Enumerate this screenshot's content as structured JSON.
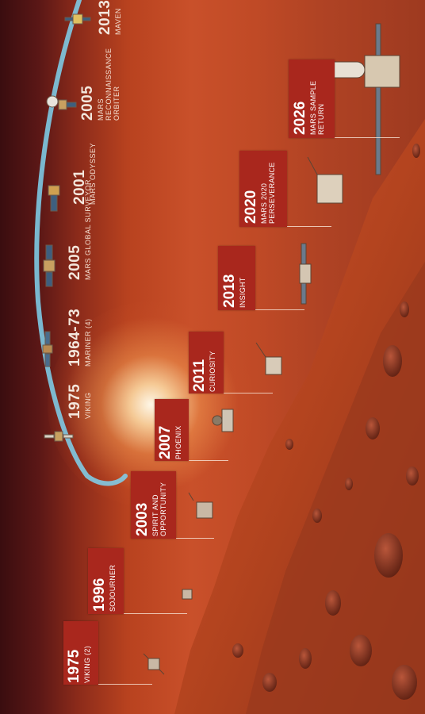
{
  "orbiters": [
    {
      "year": "1975",
      "name": "VIKING"
    },
    {
      "year": "1964-73",
      "name": "MARINER (4)"
    },
    {
      "year": "2005",
      "name": "MARS GLOBAL SURVEYOR"
    },
    {
      "year": "2001",
      "name": "MARS ODYSSEY"
    },
    {
      "year": "2005",
      "name_line1": "MARS",
      "name_line2": "RECONNAISSANCE",
      "name_line3": "ORBITER"
    },
    {
      "year": "2013",
      "name": "MAVEN"
    }
  ],
  "landers": [
    {
      "year": "1975",
      "name": "VIKING (2)"
    },
    {
      "year": "1996",
      "name": "SOJOURNER"
    },
    {
      "year": "2003",
      "name_line1": "SPIRIT AND",
      "name_line2": "OPPORTUNITY"
    },
    {
      "year": "2007",
      "name": "PHOENIX"
    },
    {
      "year": "2011",
      "name": "CURIOSITY"
    },
    {
      "year": "2018",
      "name": "INSIGHT"
    },
    {
      "year": "2020",
      "name_line1": "MARS 2020",
      "name_line2": "PERSEVERANCE"
    },
    {
      "year": "2026",
      "name_line1": "MARS SAMPLE",
      "name_line2": "RETURN"
    }
  ],
  "colors": {
    "label_box": "#a9271d",
    "orbit_arc": "#7fd3f0",
    "space": "#3a0d0f",
    "mars_surface": "#b8421f"
  }
}
